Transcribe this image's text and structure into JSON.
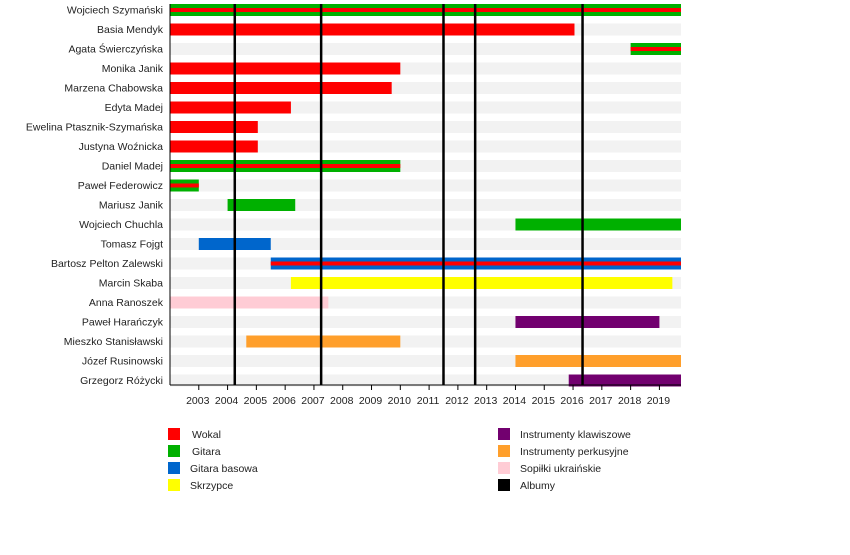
{
  "chart_data": {
    "type": "timeline",
    "title": "",
    "xlabel": "",
    "ylabel": "",
    "xlim": [
      2002.0,
      2019.75
    ],
    "x_ticks": [
      2003,
      2004,
      2005,
      2006,
      2007,
      2008,
      2009,
      2010,
      2011,
      2012,
      2013,
      2014,
      2015,
      2016,
      2017,
      2018,
      2019
    ],
    "colors": {
      "vocal": "#ff0000",
      "guitar": "#00b000",
      "bass": "#0066cc",
      "violin": "#ffff00",
      "keys": "#72006f",
      "percussion": "#ff9f2b",
      "sopilka": "#ffccd5",
      "albums": "#000000"
    },
    "members": [
      {
        "name": "Wojciech Szymański",
        "bars": [
          {
            "from": 2002.0,
            "to": 2019.75,
            "role": "guitar",
            "stripe": "vocal"
          }
        ]
      },
      {
        "name": "Basia Mendyk",
        "bars": [
          {
            "from": 2002.0,
            "to": 2016.05,
            "role": "vocal"
          }
        ]
      },
      {
        "name": "Agata Świerczyńska",
        "bars": [
          {
            "from": 2018.0,
            "to": 2019.75,
            "role": "guitar",
            "stripe": "vocal"
          }
        ]
      },
      {
        "name": "Monika Janik",
        "bars": [
          {
            "from": 2002.0,
            "to": 2010.0,
            "role": "vocal"
          }
        ]
      },
      {
        "name": "Marzena Chabowska",
        "bars": [
          {
            "from": 2002.0,
            "to": 2009.7,
            "role": "vocal"
          }
        ]
      },
      {
        "name": "Edyta Madej",
        "bars": [
          {
            "from": 2002.0,
            "to": 2006.2,
            "role": "vocal"
          }
        ]
      },
      {
        "name": "Ewelina Ptasznik-Szymańska",
        "bars": [
          {
            "from": 2002.0,
            "to": 2005.05,
            "role": "vocal"
          }
        ]
      },
      {
        "name": "Justyna Woźnicka",
        "bars": [
          {
            "from": 2002.0,
            "to": 2005.05,
            "role": "vocal"
          }
        ]
      },
      {
        "name": "Daniel Madej",
        "bars": [
          {
            "from": 2002.0,
            "to": 2010.0,
            "role": "guitar",
            "stripe": "vocal"
          }
        ]
      },
      {
        "name": "Paweł Federowicz",
        "bars": [
          {
            "from": 2002.0,
            "to": 2003.0,
            "role": "guitar",
            "stripe": "vocal"
          }
        ]
      },
      {
        "name": "Mariusz Janik",
        "bars": [
          {
            "from": 2004.0,
            "to": 2006.35,
            "role": "guitar"
          }
        ]
      },
      {
        "name": "Wojciech Chuchla",
        "bars": [
          {
            "from": 2014.0,
            "to": 2019.75,
            "role": "guitar"
          }
        ]
      },
      {
        "name": "Tomasz Fojgt",
        "bars": [
          {
            "from": 2003.0,
            "to": 2005.5,
            "role": "bass"
          }
        ]
      },
      {
        "name": "Bartosz Pelton Zalewski",
        "bars": [
          {
            "from": 2005.5,
            "to": 2019.75,
            "role": "bass",
            "stripe": "vocal"
          }
        ]
      },
      {
        "name": "Marcin Skaba",
        "bars": [
          {
            "from": 2006.2,
            "to": 2019.45,
            "role": "violin"
          }
        ]
      },
      {
        "name": "Anna Ranoszek",
        "bars": [
          {
            "from": 2002.0,
            "to": 2007.5,
            "role": "sopilka"
          }
        ]
      },
      {
        "name": "Paweł Harańczyk",
        "bars": [
          {
            "from": 2014.0,
            "to": 2019.0,
            "role": "keys"
          }
        ]
      },
      {
        "name": "Mieszko Stanisławski",
        "bars": [
          {
            "from": 2004.65,
            "to": 2010.0,
            "role": "percussion"
          }
        ]
      },
      {
        "name": "Józef Rusinowski",
        "bars": [
          {
            "from": 2014.0,
            "to": 2019.75,
            "role": "percussion"
          }
        ]
      },
      {
        "name": "Grzegorz Różycki",
        "bars": [
          {
            "from": 2015.85,
            "to": 2019.75,
            "role": "keys"
          }
        ]
      }
    ],
    "albums": [
      2004.25,
      2007.25,
      2011.5,
      2012.6,
      2016.33
    ],
    "legend": [
      {
        "role": "vocal",
        "label": "Wokal"
      },
      {
        "role": "guitar",
        "label": "Gitara"
      },
      {
        "role": "bass",
        "label": "Gitara basowa"
      },
      {
        "role": "violin",
        "label": "Skrzypce"
      },
      {
        "role": "keys",
        "label": "Instrumenty klawiszowe"
      },
      {
        "role": "percussion",
        "label": "Instrumenty perkusyjne"
      },
      {
        "role": "sopilka",
        "label": "Sopiłki ukraińskie"
      },
      {
        "role": "albums",
        "label": "Albumy"
      }
    ],
    "legend_placement": "bottom"
  }
}
